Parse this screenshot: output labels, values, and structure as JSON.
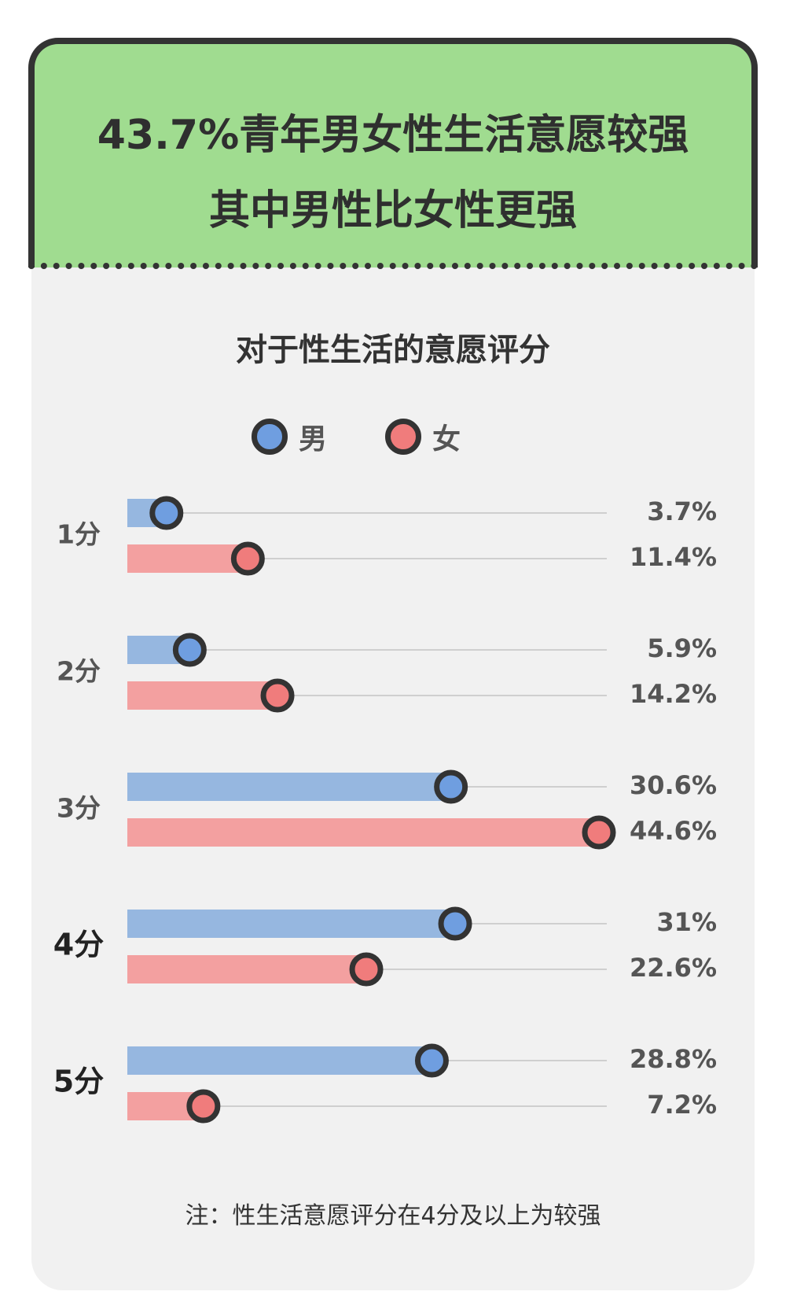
{
  "header": {
    "title_line1": "43.7%青年男女性生活意愿较强",
    "title_line2": "其中男性比女性更强"
  },
  "subtitle": "对于性生活的意愿评分",
  "legend": [
    {
      "label": "男",
      "color": "#6f9ee0"
    },
    {
      "label": "女",
      "color": "#f07c7c"
    }
  ],
  "footnote": "注：性生活意愿评分在4分及以上为较强",
  "colors": {
    "male_bar": "#96b7e0",
    "male_dot": "#6f9ee0",
    "female_bar": "#f3a0a0",
    "female_dot": "#f07c7c",
    "outline": "#333333"
  },
  "chart_data": {
    "type": "bar",
    "orientation": "horizontal",
    "categories": [
      "1分",
      "2分",
      "3分",
      "4分",
      "5分"
    ],
    "series": [
      {
        "name": "男",
        "values": [
          3.7,
          5.9,
          30.6,
          31,
          28.8
        ],
        "labels": [
          "3.7%",
          "5.9%",
          "30.6%",
          "31%",
          "28.8%"
        ]
      },
      {
        "name": "女",
        "values": [
          11.4,
          14.2,
          44.6,
          22.6,
          7.2
        ],
        "labels": [
          "11.4%",
          "14.2%",
          "44.6%",
          "22.6%",
          "7.2%"
        ]
      }
    ],
    "xlim": [
      0,
      44.6
    ],
    "legend_position": "top-center"
  }
}
